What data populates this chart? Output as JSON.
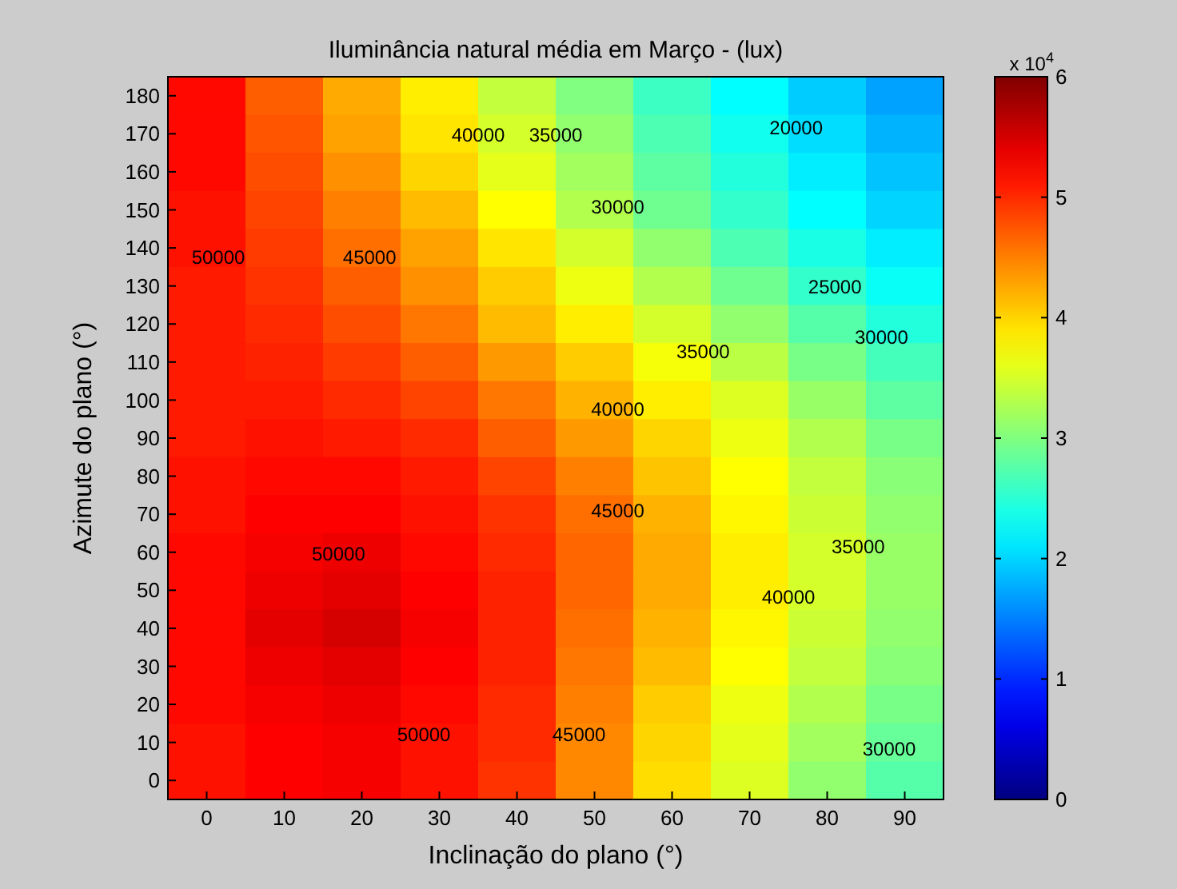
{
  "chart_data": {
    "type": "heatmap",
    "title": "Iluminância natural média em Março - (lux)",
    "xlabel": "Inclinação do plano (°)",
    "ylabel": "Azimute do plano (°)",
    "clabel": "x 10$^{4}$",
    "categories": [
      "0",
      "10",
      "20",
      "30",
      "40",
      "50",
      "60",
      "70",
      "80",
      "90"
    ],
    "y_categories": [
      "180",
      "170",
      "160",
      "150",
      "140",
      "130",
      "120",
      "110",
      "100",
      "90",
      "80",
      "70",
      "60",
      "50",
      "40",
      "30",
      "20",
      "10",
      "0"
    ],
    "cells": [
      [
        5.2,
        4.7,
        4.25,
        3.85,
        3.4,
        3.0,
        2.6,
        2.25,
        1.95,
        1.7
      ],
      [
        5.2,
        4.75,
        4.3,
        3.9,
        3.5,
        3.1,
        2.7,
        2.35,
        2.05,
        1.8
      ],
      [
        5.2,
        4.8,
        4.4,
        4.0,
        3.6,
        3.2,
        2.8,
        2.45,
        2.15,
        1.9
      ],
      [
        5.15,
        4.85,
        4.5,
        4.15,
        3.75,
        3.3,
        2.9,
        2.55,
        2.25,
        2.0
      ],
      [
        5.15,
        4.9,
        4.6,
        4.3,
        3.9,
        3.5,
        3.1,
        2.7,
        2.4,
        2.15
      ],
      [
        5.1,
        4.95,
        4.7,
        4.4,
        4.05,
        3.65,
        3.3,
        2.9,
        2.55,
        2.3
      ],
      [
        5.1,
        5.0,
        4.8,
        4.55,
        4.15,
        3.85,
        3.5,
        3.1,
        2.75,
        2.45
      ],
      [
        5.1,
        5.05,
        4.9,
        4.7,
        4.35,
        4.05,
        3.7,
        3.35,
        2.95,
        2.65
      ],
      [
        5.1,
        5.1,
        5.0,
        4.85,
        4.55,
        4.2,
        3.85,
        3.55,
        3.15,
        2.8
      ],
      [
        5.1,
        5.15,
        5.1,
        5.0,
        4.7,
        4.35,
        4.0,
        3.65,
        3.3,
        2.95
      ],
      [
        5.15,
        5.2,
        5.2,
        5.1,
        4.85,
        4.5,
        4.1,
        3.75,
        3.4,
        3.05
      ],
      [
        5.15,
        5.25,
        5.25,
        5.15,
        4.95,
        4.6,
        4.2,
        3.8,
        3.45,
        3.1
      ],
      [
        5.2,
        5.3,
        5.35,
        5.2,
        5.0,
        4.65,
        4.25,
        3.85,
        3.5,
        3.15
      ],
      [
        5.2,
        5.35,
        5.4,
        5.25,
        5.05,
        4.65,
        4.25,
        3.85,
        3.5,
        3.15
      ],
      [
        5.2,
        5.4,
        5.5,
        5.3,
        5.05,
        4.6,
        4.2,
        3.8,
        3.45,
        3.1
      ],
      [
        5.2,
        5.35,
        5.4,
        5.25,
        5.05,
        4.55,
        4.15,
        3.75,
        3.4,
        3.05
      ],
      [
        5.2,
        5.3,
        5.35,
        5.2,
        5.0,
        4.5,
        4.05,
        3.65,
        3.3,
        2.95
      ],
      [
        5.15,
        5.25,
        5.3,
        5.15,
        5.0,
        4.45,
        4.0,
        3.6,
        3.2,
        2.85
      ],
      [
        5.15,
        5.25,
        5.3,
        5.15,
        4.95,
        4.45,
        3.95,
        3.55,
        3.1,
        2.75
      ]
    ],
    "clim": [
      0,
      6
    ],
    "cticks": [
      0,
      1,
      2,
      3,
      4,
      5,
      6
    ],
    "annotations": [
      "50000",
      "45000",
      "40000",
      "35000",
      "20000",
      "30000",
      "25000",
      "35000",
      "30000",
      "40000",
      "50000",
      "45000",
      "40000",
      "35000",
      "50000",
      "45000",
      "30000"
    ]
  }
}
